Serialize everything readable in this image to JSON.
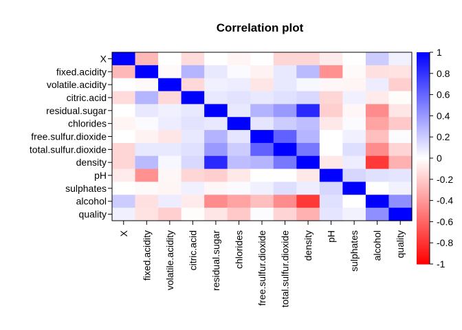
{
  "chart_data": {
    "type": "heatmap",
    "title": "Correlation plot",
    "variables": [
      "X",
      "fixed.acidity",
      "volatile.acidity",
      "citric.acid",
      "residual.sugar",
      "chlorides",
      "free.sulfur.dioxide",
      "total.sulfur.dioxide",
      "density",
      "pH",
      "sulphates",
      "alcohol",
      "quality"
    ],
    "matrix": [
      [
        1.0,
        -0.28,
        0.0,
        -0.14,
        0.0,
        -0.04,
        0.0,
        -0.16,
        -0.16,
        -0.08,
        0.0,
        0.2,
        0.06
      ],
      [
        -0.28,
        1.0,
        -0.02,
        0.29,
        0.09,
        0.02,
        -0.05,
        0.09,
        0.27,
        -0.43,
        -0.02,
        -0.12,
        -0.11
      ],
      [
        0.0,
        -0.02,
        1.0,
        -0.15,
        0.06,
        0.07,
        -0.1,
        0.09,
        0.03,
        -0.03,
        -0.04,
        0.07,
        -0.19
      ],
      [
        -0.14,
        0.29,
        -0.15,
        1.0,
        0.09,
        0.11,
        0.09,
        0.12,
        0.15,
        -0.16,
        0.06,
        -0.08,
        -0.01
      ],
      [
        0.0,
        0.09,
        0.06,
        0.09,
        1.0,
        0.09,
        0.3,
        0.4,
        0.84,
        -0.19,
        -0.03,
        -0.45,
        -0.1
      ],
      [
        -0.04,
        0.02,
        0.07,
        0.11,
        0.09,
        1.0,
        0.1,
        0.2,
        0.26,
        -0.09,
        0.02,
        -0.36,
        -0.21
      ],
      [
        0.0,
        -0.05,
        -0.1,
        0.09,
        0.3,
        0.1,
        1.0,
        0.62,
        0.29,
        0.0,
        0.06,
        -0.25,
        0.01
      ],
      [
        -0.16,
        0.09,
        0.09,
        0.12,
        0.4,
        0.2,
        0.62,
        1.0,
        0.53,
        0.0,
        0.13,
        -0.45,
        -0.17
      ],
      [
        -0.16,
        0.27,
        0.03,
        0.15,
        0.84,
        0.26,
        0.29,
        0.53,
        1.0,
        -0.09,
        0.07,
        -0.78,
        -0.31
      ],
      [
        -0.08,
        -0.43,
        -0.03,
        -0.16,
        -0.19,
        -0.09,
        0.0,
        0.0,
        -0.09,
        1.0,
        0.16,
        0.12,
        0.1
      ],
      [
        0.0,
        -0.02,
        -0.04,
        0.06,
        -0.03,
        0.02,
        0.06,
        0.13,
        0.07,
        0.16,
        1.0,
        0.0,
        0.05
      ],
      [
        0.2,
        -0.12,
        0.07,
        -0.08,
        -0.45,
        -0.36,
        -0.25,
        -0.45,
        -0.78,
        0.12,
        0.0,
        1.0,
        0.44
      ],
      [
        0.06,
        -0.11,
        -0.19,
        -0.01,
        -0.1,
        -0.21,
        0.01,
        -0.17,
        -0.31,
        0.1,
        0.05,
        0.44,
        1.0
      ]
    ],
    "color_scale": {
      "min": -1,
      "max": 1,
      "low_color": "#ff0000",
      "mid_color": "#ffffff",
      "high_color": "#0000ff",
      "ticks": [
        "1",
        "0.8",
        "0.6",
        "0.4",
        "0.2",
        "0",
        "-0.2",
        "-0.4",
        "-0.6",
        "-0.8",
        "-1"
      ]
    },
    "legend_placement": "right",
    "grid": false
  }
}
